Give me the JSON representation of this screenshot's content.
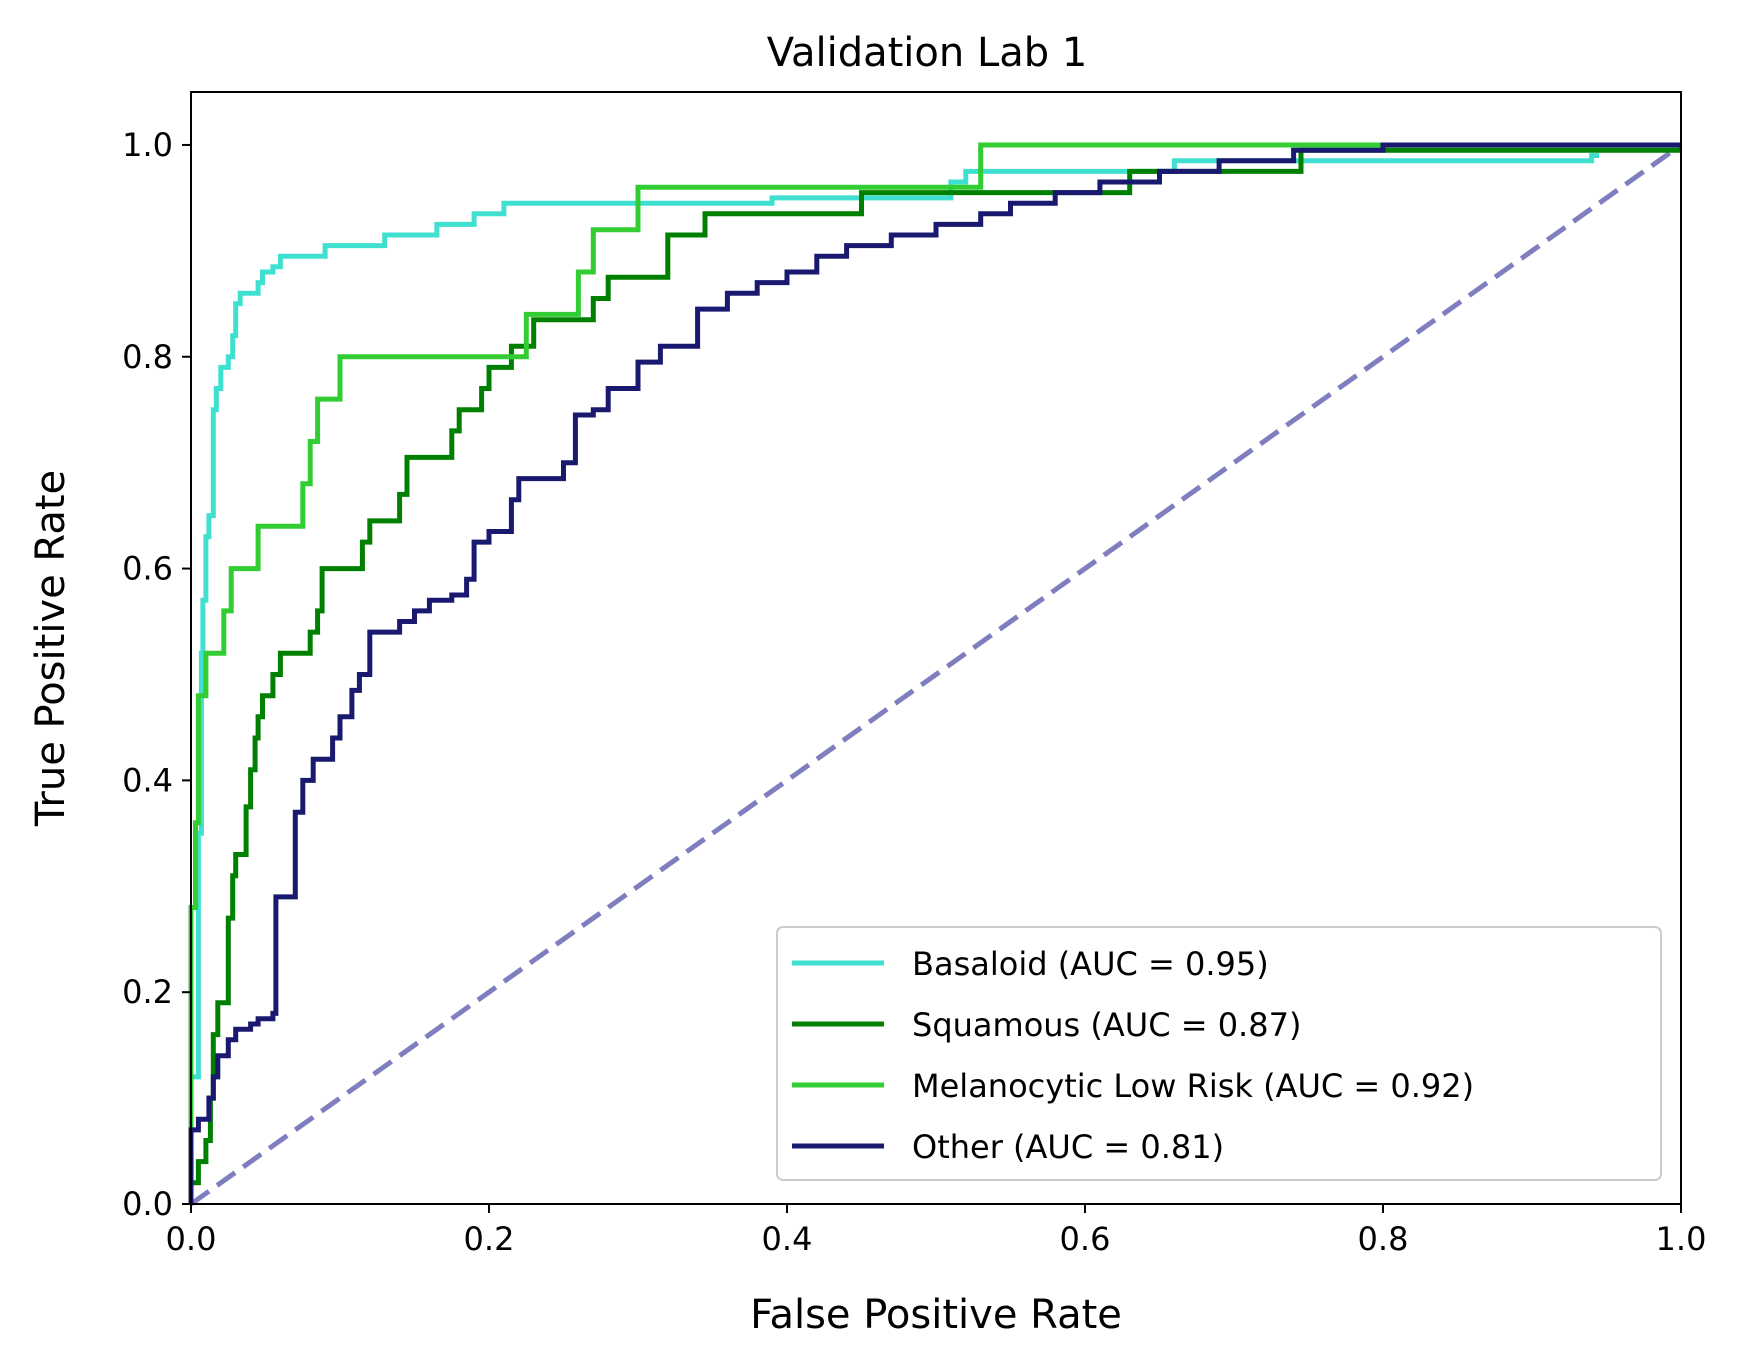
{
  "chart_data": {
    "type": "line",
    "title": "Validation Lab 1",
    "xlabel": "False Positive Rate",
    "ylabel": "True Positive Rate",
    "xlim": [
      0.0,
      1.0
    ],
    "ylim": [
      0.0,
      1.05
    ],
    "xticks": [
      "0.0",
      "0.2",
      "0.4",
      "0.6",
      "0.8",
      "1.0"
    ],
    "yticks": [
      "0.0",
      "0.2",
      "0.4",
      "0.6",
      "0.8",
      "1.0"
    ],
    "grid": false,
    "legend_position": "lower-right",
    "series": [
      {
        "name": "Basaloid (AUC = 0.95)",
        "color": "#40e0d0",
        "style": "step",
        "points": [
          [
            0,
            0
          ],
          [
            0,
            0.12
          ],
          [
            0.005,
            0.12
          ],
          [
            0.005,
            0.35
          ],
          [
            0.007,
            0.35
          ],
          [
            0.007,
            0.52
          ],
          [
            0.008,
            0.52
          ],
          [
            0.008,
            0.57
          ],
          [
            0.01,
            0.57
          ],
          [
            0.01,
            0.63
          ],
          [
            0.012,
            0.63
          ],
          [
            0.012,
            0.65
          ],
          [
            0.015,
            0.65
          ],
          [
            0.015,
            0.75
          ],
          [
            0.017,
            0.75
          ],
          [
            0.017,
            0.77
          ],
          [
            0.02,
            0.77
          ],
          [
            0.02,
            0.79
          ],
          [
            0.025,
            0.79
          ],
          [
            0.025,
            0.8
          ],
          [
            0.028,
            0.8
          ],
          [
            0.028,
            0.82
          ],
          [
            0.03,
            0.82
          ],
          [
            0.03,
            0.85
          ],
          [
            0.033,
            0.85
          ],
          [
            0.033,
            0.86
          ],
          [
            0.045,
            0.86
          ],
          [
            0.045,
            0.87
          ],
          [
            0.048,
            0.87
          ],
          [
            0.048,
            0.88
          ],
          [
            0.055,
            0.88
          ],
          [
            0.055,
            0.885
          ],
          [
            0.06,
            0.885
          ],
          [
            0.06,
            0.895
          ],
          [
            0.09,
            0.895
          ],
          [
            0.09,
            0.905
          ],
          [
            0.13,
            0.905
          ],
          [
            0.13,
            0.915
          ],
          [
            0.165,
            0.915
          ],
          [
            0.165,
            0.925
          ],
          [
            0.19,
            0.925
          ],
          [
            0.19,
            0.935
          ],
          [
            0.21,
            0.935
          ],
          [
            0.21,
            0.945
          ],
          [
            0.39,
            0.945
          ],
          [
            0.39,
            0.95
          ],
          [
            0.51,
            0.95
          ],
          [
            0.51,
            0.965
          ],
          [
            0.52,
            0.965
          ],
          [
            0.52,
            0.975
          ],
          [
            0.66,
            0.975
          ],
          [
            0.66,
            0.985
          ],
          [
            0.94,
            0.985
          ],
          [
            0.94,
            0.99
          ],
          [
            0.945,
            0.99
          ]
        ]
      },
      {
        "name": "Squamous (AUC = 0.87)",
        "color": "#008000",
        "style": "step",
        "points": [
          [
            0,
            0
          ],
          [
            0,
            0.02
          ],
          [
            0.005,
            0.02
          ],
          [
            0.005,
            0.04
          ],
          [
            0.01,
            0.04
          ],
          [
            0.01,
            0.06
          ],
          [
            0.013,
            0.06
          ],
          [
            0.013,
            0.1
          ],
          [
            0.015,
            0.1
          ],
          [
            0.015,
            0.16
          ],
          [
            0.018,
            0.16
          ],
          [
            0.018,
            0.19
          ],
          [
            0.025,
            0.19
          ],
          [
            0.025,
            0.27
          ],
          [
            0.028,
            0.27
          ],
          [
            0.028,
            0.31
          ],
          [
            0.03,
            0.31
          ],
          [
            0.03,
            0.33
          ],
          [
            0.037,
            0.33
          ],
          [
            0.037,
            0.375
          ],
          [
            0.04,
            0.375
          ],
          [
            0.04,
            0.41
          ],
          [
            0.043,
            0.41
          ],
          [
            0.043,
            0.44
          ],
          [
            0.045,
            0.44
          ],
          [
            0.045,
            0.46
          ],
          [
            0.048,
            0.46
          ],
          [
            0.048,
            0.48
          ],
          [
            0.055,
            0.48
          ],
          [
            0.055,
            0.5
          ],
          [
            0.06,
            0.5
          ],
          [
            0.06,
            0.52
          ],
          [
            0.08,
            0.52
          ],
          [
            0.08,
            0.54
          ],
          [
            0.085,
            0.54
          ],
          [
            0.085,
            0.56
          ],
          [
            0.088,
            0.56
          ],
          [
            0.088,
            0.6
          ],
          [
            0.115,
            0.6
          ],
          [
            0.115,
            0.625
          ],
          [
            0.12,
            0.625
          ],
          [
            0.12,
            0.645
          ],
          [
            0.14,
            0.645
          ],
          [
            0.14,
            0.67
          ],
          [
            0.145,
            0.67
          ],
          [
            0.145,
            0.705
          ],
          [
            0.175,
            0.705
          ],
          [
            0.175,
            0.73
          ],
          [
            0.18,
            0.73
          ],
          [
            0.18,
            0.75
          ],
          [
            0.195,
            0.75
          ],
          [
            0.195,
            0.77
          ],
          [
            0.2,
            0.77
          ],
          [
            0.2,
            0.79
          ],
          [
            0.215,
            0.79
          ],
          [
            0.215,
            0.81
          ],
          [
            0.23,
            0.81
          ],
          [
            0.23,
            0.835
          ],
          [
            0.27,
            0.835
          ],
          [
            0.27,
            0.855
          ],
          [
            0.28,
            0.855
          ],
          [
            0.28,
            0.875
          ],
          [
            0.32,
            0.875
          ],
          [
            0.32,
            0.915
          ],
          [
            0.345,
            0.915
          ],
          [
            0.345,
            0.935
          ],
          [
            0.45,
            0.935
          ],
          [
            0.45,
            0.955
          ],
          [
            0.63,
            0.955
          ],
          [
            0.63,
            0.975
          ],
          [
            0.745,
            0.975
          ],
          [
            0.745,
            0.995
          ],
          [
            1.0,
            0.995
          ]
        ]
      },
      {
        "name": "Melanocytic Low Risk (AUC = 0.92)",
        "color": "#32cd32",
        "style": "step",
        "points": [
          [
            0,
            0
          ],
          [
            0,
            0.28
          ],
          [
            0.003,
            0.28
          ],
          [
            0.003,
            0.36
          ],
          [
            0.005,
            0.36
          ],
          [
            0.005,
            0.48
          ],
          [
            0.01,
            0.48
          ],
          [
            0.01,
            0.52
          ],
          [
            0.022,
            0.52
          ],
          [
            0.022,
            0.56
          ],
          [
            0.027,
            0.56
          ],
          [
            0.027,
            0.6
          ],
          [
            0.045,
            0.6
          ],
          [
            0.045,
            0.64
          ],
          [
            0.075,
            0.64
          ],
          [
            0.075,
            0.68
          ],
          [
            0.08,
            0.68
          ],
          [
            0.08,
            0.72
          ],
          [
            0.085,
            0.72
          ],
          [
            0.085,
            0.76
          ],
          [
            0.1,
            0.76
          ],
          [
            0.1,
            0.8
          ],
          [
            0.225,
            0.8
          ],
          [
            0.225,
            0.84
          ],
          [
            0.26,
            0.84
          ],
          [
            0.26,
            0.88
          ],
          [
            0.27,
            0.88
          ],
          [
            0.27,
            0.92
          ],
          [
            0.3,
            0.92
          ],
          [
            0.3,
            0.96
          ],
          [
            0.53,
            0.96
          ],
          [
            0.53,
            1.0
          ],
          [
            0.94,
            1.0
          ]
        ]
      },
      {
        "name": "Other (AUC = 0.81)",
        "color": "#191970",
        "style": "step",
        "points": [
          [
            0,
            0
          ],
          [
            0,
            0.07
          ],
          [
            0.005,
            0.07
          ],
          [
            0.005,
            0.08
          ],
          [
            0.012,
            0.08
          ],
          [
            0.012,
            0.1
          ],
          [
            0.015,
            0.1
          ],
          [
            0.015,
            0.12
          ],
          [
            0.018,
            0.12
          ],
          [
            0.018,
            0.14
          ],
          [
            0.025,
            0.14
          ],
          [
            0.025,
            0.155
          ],
          [
            0.03,
            0.155
          ],
          [
            0.03,
            0.165
          ],
          [
            0.04,
            0.165
          ],
          [
            0.04,
            0.17
          ],
          [
            0.045,
            0.17
          ],
          [
            0.045,
            0.175
          ],
          [
            0.055,
            0.175
          ],
          [
            0.055,
            0.18
          ],
          [
            0.057,
            0.18
          ],
          [
            0.057,
            0.29
          ],
          [
            0.07,
            0.29
          ],
          [
            0.07,
            0.37
          ],
          [
            0.075,
            0.37
          ],
          [
            0.075,
            0.4
          ],
          [
            0.082,
            0.4
          ],
          [
            0.082,
            0.42
          ],
          [
            0.095,
            0.42
          ],
          [
            0.095,
            0.44
          ],
          [
            0.1,
            0.44
          ],
          [
            0.1,
            0.46
          ],
          [
            0.108,
            0.46
          ],
          [
            0.108,
            0.485
          ],
          [
            0.113,
            0.485
          ],
          [
            0.113,
            0.5
          ],
          [
            0.12,
            0.5
          ],
          [
            0.12,
            0.54
          ],
          [
            0.14,
            0.54
          ],
          [
            0.14,
            0.55
          ],
          [
            0.15,
            0.55
          ],
          [
            0.15,
            0.56
          ],
          [
            0.16,
            0.56
          ],
          [
            0.16,
            0.57
          ],
          [
            0.175,
            0.57
          ],
          [
            0.175,
            0.575
          ],
          [
            0.185,
            0.575
          ],
          [
            0.185,
            0.59
          ],
          [
            0.19,
            0.59
          ],
          [
            0.19,
            0.625
          ],
          [
            0.2,
            0.625
          ],
          [
            0.2,
            0.635
          ],
          [
            0.215,
            0.635
          ],
          [
            0.215,
            0.665
          ],
          [
            0.22,
            0.665
          ],
          [
            0.22,
            0.685
          ],
          [
            0.25,
            0.685
          ],
          [
            0.25,
            0.7
          ],
          [
            0.258,
            0.7
          ],
          [
            0.258,
            0.745
          ],
          [
            0.27,
            0.745
          ],
          [
            0.27,
            0.75
          ],
          [
            0.28,
            0.75
          ],
          [
            0.28,
            0.77
          ],
          [
            0.3,
            0.77
          ],
          [
            0.3,
            0.795
          ],
          [
            0.315,
            0.795
          ],
          [
            0.315,
            0.81
          ],
          [
            0.34,
            0.81
          ],
          [
            0.34,
            0.845
          ],
          [
            0.36,
            0.845
          ],
          [
            0.36,
            0.86
          ],
          [
            0.38,
            0.86
          ],
          [
            0.38,
            0.87
          ],
          [
            0.4,
            0.87
          ],
          [
            0.4,
            0.88
          ],
          [
            0.42,
            0.88
          ],
          [
            0.42,
            0.895
          ],
          [
            0.44,
            0.895
          ],
          [
            0.44,
            0.905
          ],
          [
            0.47,
            0.905
          ],
          [
            0.47,
            0.915
          ],
          [
            0.5,
            0.915
          ],
          [
            0.5,
            0.925
          ],
          [
            0.53,
            0.925
          ],
          [
            0.53,
            0.935
          ],
          [
            0.55,
            0.935
          ],
          [
            0.55,
            0.945
          ],
          [
            0.58,
            0.945
          ],
          [
            0.58,
            0.955
          ],
          [
            0.61,
            0.955
          ],
          [
            0.61,
            0.965
          ],
          [
            0.65,
            0.965
          ],
          [
            0.65,
            0.975
          ],
          [
            0.69,
            0.975
          ],
          [
            0.69,
            0.985
          ],
          [
            0.74,
            0.985
          ],
          [
            0.74,
            0.995
          ],
          [
            0.8,
            0.995
          ],
          [
            0.8,
            1.0
          ],
          [
            1.0,
            1.0
          ]
        ]
      },
      {
        "name": "chance",
        "color": "#7f7fbf",
        "style": "dashed",
        "points": [
          [
            0,
            0
          ],
          [
            1,
            1
          ]
        ]
      }
    ]
  }
}
